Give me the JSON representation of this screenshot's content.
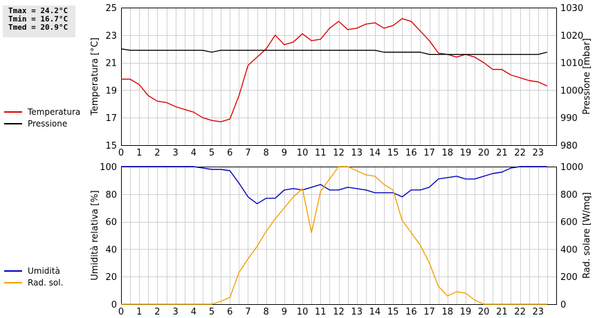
{
  "stats": {
    "tmax": "Tmax = 24.2°C",
    "tmin": "Tmin = 16.7°C",
    "tmed": "Tmed = 20.9°C"
  },
  "legend_top": [
    {
      "label": "Temperatura",
      "color": "#dd0000"
    },
    {
      "label": "Pressione",
      "color": "#000000"
    }
  ],
  "legend_bottom": [
    {
      "label": "Umidità",
      "color": "#0000bb"
    },
    {
      "label": "Rad. sol.",
      "color": "#f0a000"
    }
  ],
  "chart_data": [
    {
      "type": "line",
      "xlabel": "",
      "ylabel": "Temperatura [°C]",
      "y2label": "Pressione [mbar]",
      "xlim": [
        0,
        24
      ],
      "ylim": [
        15,
        25
      ],
      "y2lim": [
        980,
        1030
      ],
      "x_ticks": [
        "0",
        "1",
        "2",
        "3",
        "4",
        "5",
        "6",
        "7",
        "8",
        "9",
        "10",
        "11",
        "12",
        "13",
        "14",
        "15",
        "16",
        "17",
        "18",
        "19",
        "20",
        "21",
        "22",
        "23"
      ],
      "y_ticks": [
        "15",
        "17",
        "19",
        "21",
        "23",
        "25"
      ],
      "y2_ticks": [
        "980",
        "990",
        "1000",
        "1010",
        "1020",
        "1030"
      ],
      "grid": true,
      "series": [
        {
          "name": "Temperatura",
          "axis": "left",
          "color": "#dd0000",
          "x": [
            0,
            0.5,
            1,
            1.5,
            2,
            2.5,
            3,
            3.5,
            4,
            4.5,
            5,
            5.5,
            6,
            6.5,
            7,
            7.5,
            8,
            8.5,
            9,
            9.5,
            10,
            10.5,
            11,
            11.5,
            12,
            12.5,
            13,
            13.5,
            14,
            14.5,
            15,
            15.5,
            16,
            16.5,
            17,
            17.5,
            18,
            18.5,
            19,
            19.5,
            20,
            20.5,
            21,
            21.5,
            22,
            22.5,
            23,
            23.5
          ],
          "y": [
            19.8,
            19.8,
            19.4,
            18.6,
            18.2,
            18.1,
            17.8,
            17.6,
            17.4,
            17.0,
            16.8,
            16.7,
            16.9,
            18.6,
            20.8,
            21.4,
            22.0,
            23.0,
            22.3,
            22.5,
            23.1,
            22.6,
            22.7,
            23.5,
            24.0,
            23.4,
            23.5,
            23.8,
            23.9,
            23.5,
            23.7,
            24.2,
            24.0,
            23.3,
            22.6,
            21.7,
            21.6,
            21.4,
            21.6,
            21.4,
            21.0,
            20.5,
            20.5,
            20.1,
            19.9,
            19.7,
            19.6,
            19.3
          ]
        },
        {
          "name": "Pressione",
          "axis": "right",
          "color": "#000000",
          "x": [
            0,
            0.5,
            1,
            1.5,
            2,
            2.5,
            3,
            3.5,
            4,
            4.5,
            5,
            5.5,
            6,
            6.5,
            7,
            7.5,
            8,
            8.5,
            9,
            9.5,
            10,
            10.5,
            11,
            11.5,
            12,
            12.5,
            13,
            13.5,
            14,
            14.5,
            15,
            15.5,
            16,
            16.5,
            17,
            17.5,
            18,
            18.5,
            19,
            19.5,
            20,
            20.5,
            21,
            21.5,
            22,
            22.5,
            23,
            23.5
          ],
          "y": [
            1015,
            1014.5,
            1014.5,
            1014.5,
            1014.5,
            1014.5,
            1014.5,
            1014.5,
            1014.5,
            1014.5,
            1013.8,
            1014.5,
            1014.5,
            1014.5,
            1014.5,
            1014.5,
            1014.5,
            1014.5,
            1014.5,
            1014.5,
            1014.5,
            1014.5,
            1014.5,
            1014.5,
            1014.5,
            1014.5,
            1014.5,
            1014.5,
            1014.5,
            1013.8,
            1013.8,
            1013.8,
            1013.8,
            1013.8,
            1013.0,
            1013.0,
            1013.0,
            1013.0,
            1013.0,
            1013.0,
            1013.0,
            1013.0,
            1013.0,
            1013.0,
            1013.0,
            1013.0,
            1013.0,
            1013.8
          ]
        }
      ]
    },
    {
      "type": "line",
      "xlabel": "",
      "ylabel": "Umidità relativa [%]",
      "y2label": "Rad. solare [W/mq]",
      "xlim": [
        0,
        24
      ],
      "ylim": [
        0,
        100
      ],
      "y2lim": [
        0,
        1000
      ],
      "x_ticks": [
        "0",
        "1",
        "2",
        "3",
        "4",
        "5",
        "6",
        "7",
        "8",
        "9",
        "10",
        "11",
        "12",
        "13",
        "14",
        "15",
        "16",
        "17",
        "18",
        "19",
        "20",
        "21",
        "22",
        "23"
      ],
      "y_ticks": [
        "0",
        "20",
        "40",
        "60",
        "80",
        "100"
      ],
      "y2_ticks": [
        "0",
        "200",
        "400",
        "600",
        "800",
        "1000"
      ],
      "grid": true,
      "series": [
        {
          "name": "Umidità",
          "axis": "left",
          "color": "#0000bb",
          "x": [
            0,
            0.5,
            1,
            1.5,
            2,
            2.5,
            3,
            3.5,
            4,
            4.5,
            5,
            5.5,
            6,
            6.5,
            7,
            7.5,
            8,
            8.5,
            9,
            9.5,
            10,
            10.5,
            11,
            11.5,
            12,
            12.5,
            13,
            13.5,
            14,
            14.5,
            15,
            15.5,
            16,
            16.5,
            17,
            17.5,
            18,
            18.5,
            19,
            19.5,
            20,
            20.5,
            21,
            21.5,
            22,
            22.5,
            23,
            23.5
          ],
          "y": [
            100,
            100,
            100,
            100,
            100,
            100,
            100,
            100,
            100,
            99,
            98,
            98,
            97,
            88,
            78,
            73,
            77,
            77,
            83,
            84,
            83,
            85,
            87,
            83,
            83,
            85,
            84,
            83,
            81,
            81,
            81,
            78,
            83,
            83,
            85,
            91,
            92,
            93,
            91,
            91,
            93,
            95,
            96,
            99,
            100,
            100,
            100,
            100
          ]
        },
        {
          "name": "Rad. sol.",
          "axis": "right",
          "color": "#f0a000",
          "x": [
            0,
            0.5,
            1,
            1.5,
            2,
            2.5,
            3,
            3.5,
            4,
            4.5,
            5,
            5.5,
            6,
            6.5,
            7,
            7.5,
            8,
            8.5,
            9,
            9.5,
            10,
            10.5,
            11,
            11.5,
            12,
            12.5,
            13,
            13.5,
            14,
            14.5,
            15,
            15.5,
            16,
            16.5,
            17,
            17.5,
            18,
            18.5,
            19,
            19.5,
            20,
            20.5,
            21,
            21.5,
            22,
            22.5,
            23,
            23.5
          ],
          "y": [
            0,
            0,
            0,
            0,
            0,
            0,
            0,
            0,
            0,
            0,
            0,
            20,
            50,
            230,
            330,
            420,
            530,
            620,
            700,
            780,
            840,
            520,
            820,
            910,
            1000,
            1000,
            970,
            940,
            930,
            870,
            830,
            610,
            520,
            430,
            300,
            130,
            60,
            90,
            80,
            30,
            0,
            0,
            0,
            0,
            0,
            0,
            0,
            0
          ]
        }
      ]
    }
  ]
}
